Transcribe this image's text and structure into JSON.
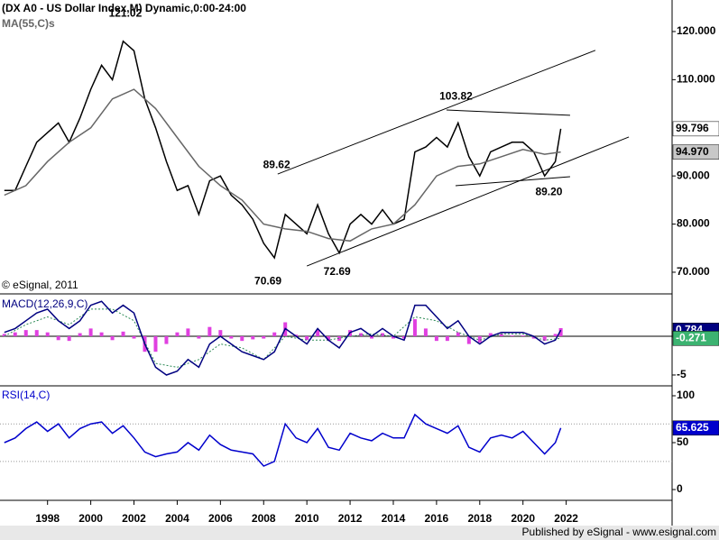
{
  "footer": "Published by eSignal - www.esignal.com",
  "chart_data": [
    {
      "type": "price",
      "title": "(DX A0 - US Dollar Index,M) Dynamic,0:00-24:00",
      "watermark": "© eSignal, 2011",
      "xlim": [
        1995.8,
        2026.9
      ],
      "ylim": [
        65.5,
        126.55
      ],
      "yticks": [
        {
          "value": 120,
          "label": "120.000"
        },
        {
          "value": 110,
          "label": "110.000"
        },
        {
          "value": 90,
          "label": "90.000"
        },
        {
          "value": 80,
          "label": "80.000"
        },
        {
          "value": 70,
          "label": "70.000"
        }
      ],
      "x": [
        1996,
        1996.5,
        1997,
        1997.5,
        1998,
        1998.5,
        1999,
        1999.5,
        2000,
        2000.5,
        2001,
        2001.5,
        2002,
        2002.5,
        2003,
        2003.5,
        2004,
        2004.5,
        2005,
        2005.5,
        2006,
        2006.5,
        2007,
        2007.5,
        2008,
        2008.5,
        2009,
        2009.5,
        2010,
        2010.5,
        2011,
        2011.5,
        2012,
        2012.5,
        2013,
        2013.5,
        2014,
        2014.5,
        2015,
        2015.5,
        2016,
        2016.5,
        2017,
        2017.5,
        2018,
        2018.5,
        2019,
        2019.5,
        2020,
        2020.5,
        2021,
        2021.5,
        2021.75
      ],
      "series": [
        {
          "color": "#000000",
          "values": [
            87,
            87,
            92,
            97,
            99,
            101,
            97,
            102,
            108,
            113,
            110,
            118,
            116,
            106,
            100,
            93,
            87,
            88,
            82,
            89,
            90,
            86,
            84,
            81,
            76,
            73,
            82,
            80,
            78,
            84,
            78,
            74,
            80,
            82,
            80,
            83,
            80,
            81,
            95,
            96,
            98,
            96,
            101,
            94,
            90,
            95,
            96,
            97,
            97,
            95,
            90,
            93,
            99.796
          ]
        },
        {
          "name": "MA(55,C)s",
          "color": "#666666",
          "last_label": "94.970",
          "x": [
            1996,
            1997,
            1998,
            1999,
            2000,
            2001,
            2002,
            2003,
            2004,
            2005,
            2006,
            2007,
            2008,
            2009,
            2010,
            2011,
            2012,
            2013,
            2014,
            2015,
            2016,
            2017,
            2018,
            2019,
            2020,
            2021,
            2021.75
          ],
          "values": [
            86,
            88,
            93,
            97,
            100,
            106,
            108,
            104,
            98,
            92,
            88,
            85,
            80,
            79,
            78.5,
            77,
            76.5,
            79,
            80,
            84,
            90,
            92,
            92.5,
            94,
            95.5,
            94.5,
            94.97
          ]
        }
      ],
      "annotations": [
        {
          "x": 2001.6,
          "value": 121.02,
          "position": "above"
        },
        {
          "x": 2008.2,
          "value": 70.69,
          "position": "below"
        },
        {
          "x": 2008.6,
          "value": 89.62,
          "position": "above"
        },
        {
          "x": 2011.4,
          "value": 72.69,
          "position": "below"
        },
        {
          "x": 2016.9,
          "value": 103.82,
          "position": "above"
        },
        {
          "x": 2021.2,
          "value": 89.2,
          "label": "89.20",
          "position": "below"
        }
      ],
      "trendlines": [
        {
          "x": [
            2008.65,
            2023.35
          ],
          "values": [
            90.4,
            116.1
          ]
        },
        {
          "x": [
            2010.0,
            2024.9
          ],
          "values": [
            71.3,
            98.1
          ]
        },
        {
          "x": [
            2016.46,
            2022.18
          ],
          "values": [
            103.7,
            102.6
          ]
        },
        {
          "x": [
            2016.88,
            2022.18
          ],
          "values": [
            87.98,
            89.85
          ]
        }
      ]
    },
    {
      "type": "macd",
      "title": "MACD(12,26,9,C)",
      "xlim": [
        1995.8,
        2026.9
      ],
      "ylim": [
        -6.4,
        5.35
      ],
      "yticks": [
        -5
      ],
      "x": [
        1996,
        1996.5,
        1997,
        1997.5,
        1998,
        1998.5,
        1999,
        1999.5,
        2000,
        2000.5,
        2001,
        2001.5,
        2002,
        2002.5,
        2003,
        2003.5,
        2004,
        2004.5,
        2005,
        2005.5,
        2006,
        2006.5,
        2007,
        2007.5,
        2008,
        2008.5,
        2009,
        2009.5,
        2010,
        2010.5,
        2011,
        2011.5,
        2012,
        2012.5,
        2013,
        2013.5,
        2014,
        2014.5,
        2015,
        2015.5,
        2016,
        2016.5,
        2017,
        2017.5,
        2018,
        2018.5,
        2019,
        2019.5,
        2020,
        2020.5,
        2021,
        2021.5,
        2021.75
      ],
      "macd": {
        "color": "#000080",
        "values": [
          0.5,
          1,
          2,
          3,
          3.5,
          2,
          1,
          2,
          4,
          4.5,
          3,
          4,
          3,
          -1,
          -4,
          -5,
          -4.5,
          -3,
          -4,
          -1,
          0,
          -1,
          -2,
          -2.5,
          -3,
          -2,
          1,
          0,
          -1,
          1,
          -0.5,
          -1.5,
          0.5,
          1,
          0,
          1,
          0,
          -0.5,
          4,
          4,
          2.5,
          1,
          2,
          0,
          -1,
          0,
          0.5,
          0.5,
          0.5,
          0,
          -1,
          -0.5,
          0.784
        ]
      },
      "signal": {
        "color": "#2e8b57",
        "x": [
          1996,
          1997,
          1998,
          1999,
          2000,
          2001,
          2002,
          2003,
          2004,
          2005,
          2006,
          2007,
          2008,
          2009,
          2010,
          2011,
          2012,
          2013,
          2014,
          2015,
          2016,
          2017,
          2018,
          2019,
          2020,
          2021,
          2021.75
        ],
        "values": [
          0,
          1.5,
          2.5,
          1.5,
          3.5,
          3.5,
          2,
          -3.5,
          -4,
          -3,
          -1,
          -1.5,
          -3,
          0,
          -0.5,
          -0.5,
          0,
          0.3,
          0,
          2.5,
          2,
          0.5,
          -0.5,
          0.3,
          0.3,
          -0.5,
          -0.271
        ]
      },
      "histogram": {
        "color": "#e040e0",
        "values": [
          0.3,
          0.5,
          0.8,
          0.8,
          0.5,
          -0.5,
          -0.6,
          0.4,
          1,
          0.5,
          -0.5,
          0.6,
          -0.3,
          -2,
          -2,
          -1,
          0.5,
          1,
          -0.3,
          1.2,
          0.8,
          -0.3,
          -0.6,
          -0.4,
          -0.3,
          0.5,
          1.8,
          0.2,
          -0.5,
          0.8,
          -0.6,
          -0.6,
          0.8,
          0.4,
          -0.3,
          0.4,
          -0.3,
          -0.3,
          2.2,
          1,
          -0.6,
          -0.6,
          0.5,
          -1,
          -0.8,
          0.4,
          0.3,
          0.1,
          0.1,
          -0.3,
          -0.6,
          0.3,
          1.05
        ]
      }
    },
    {
      "type": "rsi",
      "title": "RSI(14,C)",
      "xlim": [
        1995.8,
        2026.9
      ],
      "xticks": [
        1998,
        2000,
        2002,
        2004,
        2006,
        2008,
        2010,
        2012,
        2014,
        2016,
        2018,
        2020,
        2022
      ],
      "ylim": [
        -11.5,
        109.6
      ],
      "yticks": [
        0,
        50,
        100
      ],
      "levels": [
        70,
        30
      ],
      "color": "#0000cc",
      "x": [
        1996,
        1996.5,
        1997,
        1997.5,
        1998,
        1998.5,
        1999,
        1999.5,
        2000,
        2000.5,
        2001,
        2001.5,
        2002,
        2002.5,
        2003,
        2003.5,
        2004,
        2004.5,
        2005,
        2005.5,
        2006,
        2006.5,
        2007,
        2007.5,
        2008,
        2008.5,
        2009,
        2009.5,
        2010,
        2010.5,
        2011,
        2011.5,
        2012,
        2012.5,
        2013,
        2013.5,
        2014,
        2014.5,
        2015,
        2015.5,
        2016,
        2016.5,
        2017,
        2017.5,
        2018,
        2018.5,
        2019,
        2019.5,
        2020,
        2020.5,
        2021,
        2021.5,
        2021.75
      ],
      "values": [
        50,
        55,
        65,
        72,
        62,
        70,
        55,
        65,
        70,
        72,
        60,
        68,
        55,
        40,
        35,
        38,
        40,
        50,
        42,
        58,
        48,
        42,
        40,
        38,
        25,
        30,
        70,
        55,
        50,
        65,
        45,
        42,
        60,
        55,
        52,
        60,
        55,
        55,
        80,
        70,
        65,
        60,
        68,
        45,
        40,
        55,
        58,
        55,
        62,
        50,
        38,
        50,
        65.625
      ]
    }
  ]
}
